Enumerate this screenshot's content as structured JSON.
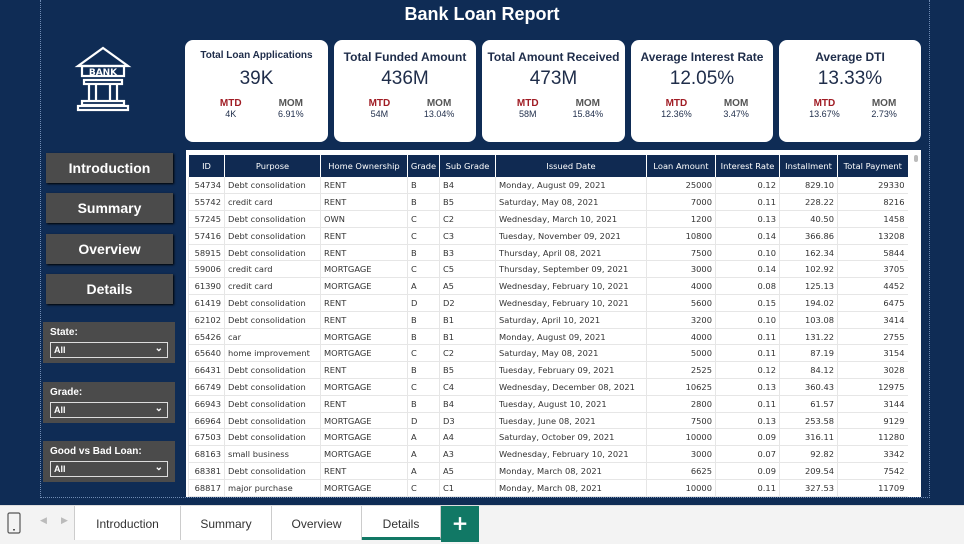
{
  "title": "Bank Loan Report",
  "logo_text": "BANK",
  "kpis": [
    {
      "title": "Total Loan Applications",
      "value": "39K",
      "mtd_label": "MTD",
      "mtd": "4K",
      "mom_label": "MOM",
      "mom": "6.91%"
    },
    {
      "title": "Total Funded Amount",
      "value": "436M",
      "mtd_label": "MTD",
      "mtd": "54M",
      "mom_label": "MOM",
      "mom": "13.04%"
    },
    {
      "title": "Total Amount Received",
      "value": "473M",
      "mtd_label": "MTD",
      "mtd": "58M",
      "mom_label": "MOM",
      "mom": "15.84%"
    },
    {
      "title": "Average Interest Rate",
      "value": "12.05%",
      "mtd_label": "MTD",
      "mtd": "12.36%",
      "mom_label": "MOM",
      "mom": "3.47%"
    },
    {
      "title": "Average DTI",
      "value": "13.33%",
      "mtd_label": "MTD",
      "mtd": "13.67%",
      "mom_label": "MOM",
      "mom": "2.73%"
    }
  ],
  "nav": [
    "Introduction",
    "Summary",
    "Overview",
    "Details"
  ],
  "filters": [
    {
      "label": "State:",
      "value": "All"
    },
    {
      "label": "Grade:",
      "value": "All"
    },
    {
      "label": "Good vs Bad Loan:",
      "value": "All"
    }
  ],
  "table": {
    "columns": [
      "ID",
      "Purpose",
      "Home Ownership",
      "Grade",
      "Sub Grade",
      "Issued Date",
      "Loan Amount",
      "Interest Rate",
      "Installment",
      "Total Payment"
    ],
    "rows": [
      [
        "54734",
        "Debt consolidation",
        "RENT",
        "B",
        "B4",
        "Monday, August 09, 2021",
        "25000",
        "0.12",
        "829.10",
        "29330"
      ],
      [
        "55742",
        "credit card",
        "RENT",
        "B",
        "B5",
        "Saturday, May 08, 2021",
        "7000",
        "0.11",
        "228.22",
        "8216"
      ],
      [
        "57245",
        "Debt consolidation",
        "OWN",
        "C",
        "C2",
        "Wednesday, March 10, 2021",
        "1200",
        "0.13",
        "40.50",
        "1458"
      ],
      [
        "57416",
        "Debt consolidation",
        "RENT",
        "C",
        "C3",
        "Tuesday, November 09, 2021",
        "10800",
        "0.14",
        "366.86",
        "13208"
      ],
      [
        "58915",
        "Debt consolidation",
        "RENT",
        "B",
        "B3",
        "Thursday, April 08, 2021",
        "7500",
        "0.10",
        "162.34",
        "5844"
      ],
      [
        "59006",
        "credit card",
        "MORTGAGE",
        "C",
        "C5",
        "Thursday, September 09, 2021",
        "3000",
        "0.14",
        "102.92",
        "3705"
      ],
      [
        "61390",
        "credit card",
        "MORTGAGE",
        "A",
        "A5",
        "Wednesday, February 10, 2021",
        "4000",
        "0.08",
        "125.13",
        "4452"
      ],
      [
        "61419",
        "Debt consolidation",
        "RENT",
        "D",
        "D2",
        "Wednesday, February 10, 2021",
        "5600",
        "0.15",
        "194.02",
        "6475"
      ],
      [
        "62102",
        "Debt consolidation",
        "RENT",
        "B",
        "B1",
        "Saturday, April 10, 2021",
        "3200",
        "0.10",
        "103.08",
        "3414"
      ],
      [
        "65426",
        "car",
        "MORTGAGE",
        "B",
        "B1",
        "Monday, August 09, 2021",
        "4000",
        "0.11",
        "131.22",
        "2755"
      ],
      [
        "65640",
        "home improvement",
        "MORTGAGE",
        "C",
        "C2",
        "Saturday, May 08, 2021",
        "5000",
        "0.11",
        "87.19",
        "3154"
      ],
      [
        "66431",
        "Debt consolidation",
        "RENT",
        "B",
        "B5",
        "Tuesday, February 09, 2021",
        "2525",
        "0.12",
        "84.12",
        "3028"
      ],
      [
        "66749",
        "Debt consolidation",
        "MORTGAGE",
        "C",
        "C4",
        "Wednesday, December 08, 2021",
        "10625",
        "0.13",
        "360.43",
        "12975"
      ],
      [
        "66943",
        "Debt consolidation",
        "RENT",
        "B",
        "B4",
        "Tuesday, August 10, 2021",
        "2800",
        "0.11",
        "61.57",
        "3144"
      ],
      [
        "66964",
        "Debt consolidation",
        "MORTGAGE",
        "D",
        "D3",
        "Tuesday, June 08, 2021",
        "7500",
        "0.13",
        "253.58",
        "9129"
      ],
      [
        "67503",
        "Debt consolidation",
        "MORTGAGE",
        "A",
        "A4",
        "Saturday, October 09, 2021",
        "10000",
        "0.09",
        "316.11",
        "11280"
      ],
      [
        "68163",
        "small business",
        "MORTGAGE",
        "A",
        "A3",
        "Wednesday, February 10, 2021",
        "3000",
        "0.07",
        "92.82",
        "3342"
      ],
      [
        "68381",
        "Debt consolidation",
        "RENT",
        "A",
        "A5",
        "Monday, March 08, 2021",
        "6625",
        "0.09",
        "209.54",
        "7542"
      ],
      [
        "68817",
        "major purchase",
        "MORTGAGE",
        "C",
        "C1",
        "Monday, March 08, 2021",
        "10000",
        "0.11",
        "327.53",
        "11709"
      ]
    ]
  },
  "page_tabs": [
    "Introduction",
    "Summary",
    "Overview",
    "Details"
  ],
  "active_tab": "Details",
  "add_tab": "+",
  "colors": {
    "background": "#0f2c55",
    "accent": "#117865",
    "mtd": "#a01c24"
  }
}
